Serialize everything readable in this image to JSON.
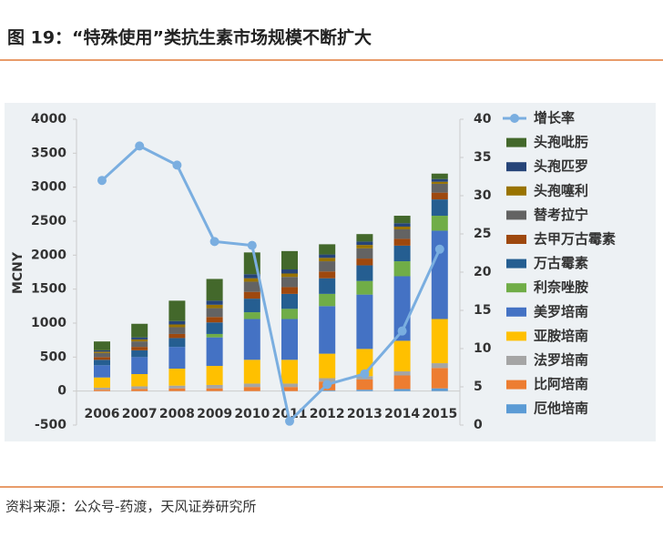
{
  "chart_data": {
    "type": "bar",
    "title": "图 19：“特殊使用”类抗生素市场规模不断扩大",
    "source": "资料来源：公众号-药渡，天风证券研究所",
    "ylabel": "MCNY",
    "categories": [
      "2006",
      "2007",
      "2008",
      "2009",
      "2010",
      "2011",
      "2012",
      "2013",
      "2014",
      "2015"
    ],
    "ylim": [
      -500,
      4000
    ],
    "yticks": [
      -500,
      0,
      500,
      1000,
      1500,
      2000,
      2500,
      3000,
      3500,
      4000
    ],
    "y2lim": [
      0,
      40
    ],
    "y2ticks": [
      0,
      5,
      10,
      15,
      20,
      25,
      30,
      35,
      40
    ],
    "series": [
      {
        "name": "厄他培南",
        "color": "#5b9bd5",
        "values": [
          0,
          0,
          0,
          0,
          0,
          0,
          10,
          20,
          30,
          40
        ]
      },
      {
        "name": "比阿培南",
        "color": "#ed7d31",
        "values": [
          20,
          30,
          40,
          40,
          60,
          60,
          130,
          150,
          200,
          300
        ]
      },
      {
        "name": "法罗培南",
        "color": "#a5a5a5",
        "values": [
          30,
          40,
          40,
          50,
          50,
          50,
          50,
          50,
          60,
          70
        ]
      },
      {
        "name": "亚胺培南",
        "color": "#ffc000",
        "values": [
          150,
          180,
          250,
          280,
          350,
          350,
          360,
          400,
          450,
          650
        ]
      },
      {
        "name": "美罗培南",
        "color": "#4472c4",
        "values": [
          180,
          250,
          320,
          420,
          600,
          600,
          700,
          800,
          950,
          1300
        ]
      },
      {
        "name": "利奈唑胺",
        "color": "#70ad47",
        "values": [
          0,
          0,
          0,
          50,
          100,
          150,
          180,
          200,
          220,
          220
        ]
      },
      {
        "name": "万古霉素",
        "color": "#255e91",
        "values": [
          80,
          100,
          130,
          170,
          200,
          220,
          230,
          230,
          230,
          240
        ]
      },
      {
        "name": "去甲万古霉素",
        "color": "#9e480e",
        "values": [
          40,
          50,
          60,
          80,
          100,
          100,
          100,
          100,
          100,
          100
        ]
      },
      {
        "name": "替考拉宁",
        "color": "#636363",
        "values": [
          60,
          80,
          100,
          130,
          150,
          150,
          150,
          150,
          140,
          130
        ]
      },
      {
        "name": "头孢噻利",
        "color": "#997300",
        "values": [
          20,
          30,
          40,
          50,
          50,
          50,
          50,
          50,
          40,
          30
        ]
      },
      {
        "name": "头孢匹罗",
        "color": "#264478",
        "values": [
          20,
          30,
          50,
          60,
          60,
          60,
          50,
          50,
          50,
          40
        ]
      },
      {
        "name": "头孢吡肟",
        "color": "#43682b",
        "values": [
          130,
          200,
          300,
          320,
          320,
          270,
          150,
          110,
          110,
          80
        ]
      },
      {
        "name": "增长率",
        "color": "#7aaee0",
        "axis": "y2",
        "type": "line",
        "values": [
          32,
          36.5,
          34,
          24,
          23.5,
          0.5,
          5.3,
          6.7,
          12.3,
          23
        ]
      }
    ]
  }
}
